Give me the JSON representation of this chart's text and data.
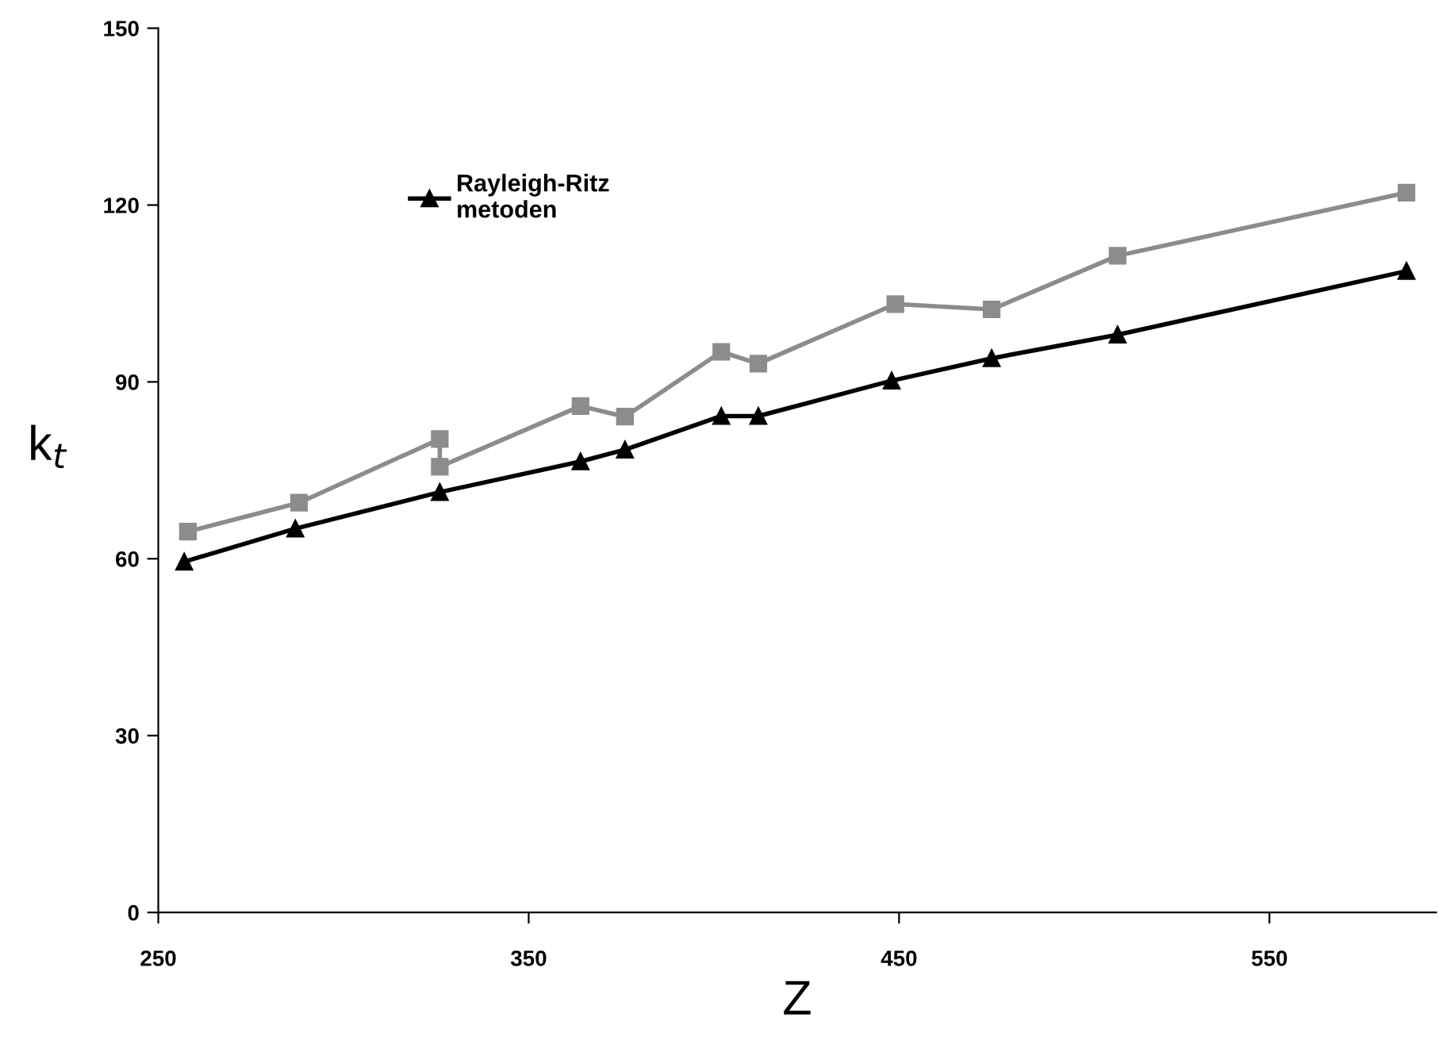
{
  "chart_data": {
    "type": "line",
    "xlabel": "Z",
    "ylabel": "k$_{t}$",
    "xlim": [
      250,
      595
    ],
    "xticks": [
      250,
      350,
      450,
      550
    ],
    "ylim": [
      0,
      150
    ],
    "yticks": [
      0,
      30,
      60,
      90,
      120,
      150
    ],
    "grid": false,
    "legend": "top left",
    "line_style": "solid",
    "series": [
      {
        "color": "#8c8c8c",
        "marker": "square",
        "x": [
          258,
          288,
          326,
          326,
          364,
          376,
          402,
          412,
          449,
          475,
          509,
          587
        ],
        "values": [
          64.6,
          69.5,
          80.3,
          75.6,
          85.9,
          84.1,
          95.1,
          93.1,
          103.2,
          102.3,
          111.4,
          122.1
        ]
      },
      {
        "name": "Rayleigh-Ritz\nmetoden",
        "color": "#000000",
        "marker": "triangle",
        "x": [
          257,
          287,
          326,
          364,
          376,
          402,
          412,
          448,
          475,
          509,
          587
        ],
        "values": [
          59.5,
          65.1,
          71.3,
          76.5,
          78.5,
          84.2,
          84.2,
          90.2,
          94.0,
          98.0,
          108.8
        ]
      }
    ]
  }
}
